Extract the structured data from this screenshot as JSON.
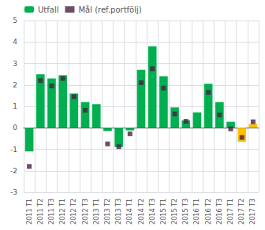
{
  "chart_data": {
    "type": "bar",
    "categories": [
      "2011 T1",
      "2011 T2",
      "2011 T3",
      "2012 T1",
      "2012 T2",
      "2012 T3",
      "2013 T1",
      "2013 T2",
      "2013 T3",
      "2014 T1",
      "2014 T2",
      "2014 T3",
      "2015 T1",
      "2015 T2",
      "2015 T3",
      "2016 T1",
      "2016 T2",
      "2016 T3",
      "2017 T1",
      "2017 T2",
      "2017 T3"
    ],
    "series": [
      {
        "name": "Utfall",
        "type": "bar",
        "color": "#00b050",
        "colors": [
          "#00b050",
          "#00b050",
          "#00b050",
          "#00b050",
          "#00b050",
          "#00b050",
          "#00b050",
          "#00b050",
          "#00b050",
          "#00b050",
          "#00b050",
          "#00b050",
          "#00b050",
          "#00b050",
          "#00b050",
          "#00b050",
          "#00b050",
          "#00b050",
          "#00b050",
          "#ffc000",
          "#ffc000"
        ],
        "values": [
          -1.1,
          2.5,
          2.3,
          2.45,
          1.6,
          1.2,
          1.1,
          -0.15,
          -0.9,
          -0.12,
          2.7,
          3.8,
          2.4,
          0.95,
          0.35,
          0.72,
          2.05,
          1.2,
          0.28,
          -0.65,
          0.18
        ]
      },
      {
        "name": "Mål (ref.portfölj)",
        "type": "scatter",
        "marker": "square",
        "color": "#4a2040",
        "values": [
          -1.8,
          2.2,
          1.95,
          2.3,
          1.45,
          0.82,
          null,
          -0.75,
          -0.88,
          -0.28,
          2.1,
          2.75,
          1.85,
          0.65,
          0.3,
          null,
          1.65,
          0.6,
          -0.05,
          -0.45,
          0.28
        ]
      }
    ],
    "ylim": [
      -3,
      5
    ],
    "yticks": [
      -3,
      -2,
      -1,
      0,
      1,
      2,
      3,
      4,
      5
    ],
    "grid": true,
    "legend": "upper left"
  }
}
